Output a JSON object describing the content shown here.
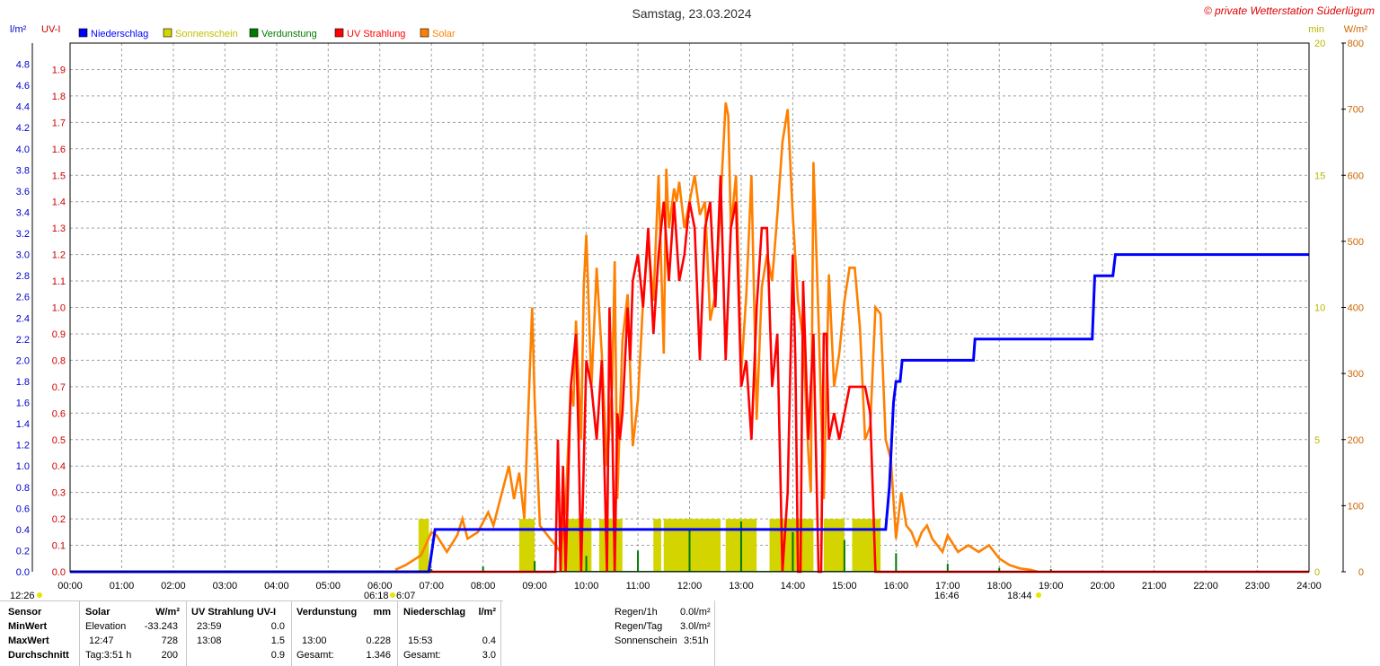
{
  "header": {
    "title": "Samstag, 23.03.2024",
    "copyright": "© private Wetterstation Süderlügum"
  },
  "axis_units": {
    "left_outer": "l/m²",
    "left_inner": "UV-I",
    "right_inner": "min",
    "right_outer": "W/m²"
  },
  "legend": [
    {
      "label": "Niederschlag",
      "color": "#0000ff"
    },
    {
      "label": "Sonnenschein",
      "color": "#d4d400"
    },
    {
      "label": "Verdunstung",
      "color": "#007a00"
    },
    {
      "label": "UV Strahlung",
      "color": "#ff0000"
    },
    {
      "label": "Solar",
      "color": "#ff8000"
    }
  ],
  "colors": {
    "rain": "#0000ff",
    "sun": "#d4d400",
    "evap": "#007a00",
    "uv": "#ff0000",
    "solar": "#ff8000",
    "grid": "#a0a0a0",
    "outer_left_text": "#0000cc",
    "inner_left_text": "#cc0000",
    "right_inner_text": "#b8b800",
    "right_outer_text": "#cc6600"
  },
  "events": {
    "moonrise": "12:26",
    "sunrise": "06:18",
    "sunrise_partial": "6:07",
    "sunset_partial": "16:46",
    "sunset": "18:44"
  },
  "chart_data": {
    "type": "line",
    "title": "Samstag, 23.03.2024",
    "x_unit": "hour",
    "xlim": [
      0,
      24
    ],
    "x_ticks": [
      "00:00",
      "01:00",
      "02:00",
      "03:00",
      "04:00",
      "05:00",
      "06:00",
      "07:00",
      "08:00",
      "09:00",
      "10:00",
      "11:00",
      "12:00",
      "13:00",
      "14:00",
      "15:00",
      "16:00",
      "17:00",
      "18:00",
      "19:00",
      "20:00",
      "21:00",
      "22:00",
      "23:00",
      "24:00"
    ],
    "axes": {
      "rain": {
        "label": "l/m²",
        "ylim": [
          0,
          5.0
        ],
        "ticks": [
          "0.0",
          "0.2",
          "0.4",
          "0.6",
          "0.8",
          "1.0",
          "1.2",
          "1.4",
          "1.6",
          "1.8",
          "2.0",
          "2.2",
          "2.4",
          "2.6",
          "2.8",
          "3.0",
          "3.2",
          "3.4",
          "3.6",
          "3.8",
          "4.0",
          "4.2",
          "4.4",
          "4.6",
          "4.8"
        ]
      },
      "uv": {
        "label": "UV-I",
        "ylim": [
          0,
          2.0
        ],
        "ticks": [
          "0.0",
          "0.1",
          "0.2",
          "0.3",
          "0.4",
          "0.5",
          "0.6",
          "0.7",
          "0.8",
          "0.9",
          "1.0",
          "1.1",
          "1.2",
          "1.3",
          "1.4",
          "1.5",
          "1.6",
          "1.7",
          "1.8",
          "1.9"
        ]
      },
      "sun_minutes": {
        "label": "min",
        "ylim": [
          0,
          20
        ],
        "ticks": [
          "0",
          "5",
          "10",
          "15",
          "20"
        ]
      },
      "solar": {
        "label": "W/m²",
        "ylim": [
          0,
          800
        ],
        "ticks": [
          "0",
          "100",
          "200",
          "300",
          "400",
          "500",
          "600",
          "700",
          "800"
        ]
      }
    },
    "series": [
      {
        "name": "Niederschlag",
        "axis": "rain",
        "x": [
          0,
          6.95,
          7.07,
          9.0,
          15.8,
          15.87,
          15.95,
          16.0,
          16.08,
          16.12,
          17.5,
          17.53,
          19.8,
          19.85,
          20.2,
          20.25,
          24.0
        ],
        "y": [
          0,
          0,
          0.4,
          0.4,
          0.4,
          0.8,
          1.6,
          1.8,
          1.8,
          2.0,
          2.0,
          2.2,
          2.2,
          2.8,
          2.8,
          3.0,
          3.0
        ]
      },
      {
        "name": "Solar",
        "axis": "solar",
        "x": [
          6.3,
          6.5,
          6.8,
          7.0,
          7.1,
          7.3,
          7.5,
          7.6,
          7.7,
          7.9,
          8.1,
          8.2,
          8.3,
          8.5,
          8.6,
          8.7,
          8.8,
          8.95,
          9.0,
          9.1,
          9.3,
          9.5,
          9.6,
          9.7,
          9.75,
          9.8,
          9.9,
          9.95,
          10.0,
          10.1,
          10.2,
          10.3,
          10.4,
          10.5,
          10.55,
          10.6,
          10.7,
          10.8,
          10.9,
          11.0,
          11.1,
          11.2,
          11.3,
          11.4,
          11.5,
          11.55,
          11.6,
          11.7,
          11.75,
          11.8,
          11.9,
          12.0,
          12.1,
          12.2,
          12.3,
          12.4,
          12.5,
          12.6,
          12.7,
          12.75,
          12.8,
          12.9,
          12.95,
          13.0,
          13.1,
          13.2,
          13.3,
          13.4,
          13.5,
          13.6,
          13.7,
          13.8,
          13.9,
          14.0,
          14.1,
          14.2,
          14.3,
          14.35,
          14.4,
          14.5,
          14.6,
          14.7,
          14.8,
          14.9,
          15.0,
          15.1,
          15.2,
          15.3,
          15.4,
          15.5,
          15.6,
          15.7,
          15.8,
          15.9,
          16.0,
          16.1,
          16.2,
          16.3,
          16.4,
          16.5,
          16.6,
          16.7,
          16.8,
          16.9,
          17.0,
          17.2,
          17.4,
          17.6,
          17.8,
          18.0,
          18.2,
          18.4,
          18.6,
          18.7,
          18.74
        ],
        "y": [
          3,
          10,
          25,
          60,
          55,
          30,
          55,
          80,
          50,
          60,
          90,
          70,
          100,
          160,
          110,
          150,
          80,
          400,
          260,
          70,
          50,
          30,
          100,
          280,
          250,
          380,
          200,
          430,
          510,
          280,
          460,
          330,
          160,
          280,
          470,
          110,
          350,
          420,
          190,
          260,
          410,
          500,
          410,
          600,
          330,
          610,
          520,
          580,
          560,
          590,
          520,
          560,
          600,
          540,
          560,
          380,
          420,
          560,
          710,
          690,
          520,
          600,
          460,
          300,
          420,
          600,
          230,
          430,
          480,
          440,
          540,
          650,
          700,
          540,
          410,
          350,
          180,
          120,
          620,
          380,
          110,
          450,
          280,
          330,
          410,
          460,
          460,
          370,
          200,
          220,
          400,
          390,
          200,
          170,
          50,
          120,
          70,
          60,
          40,
          60,
          70,
          50,
          40,
          30,
          55,
          30,
          40,
          30,
          40,
          20,
          10,
          5,
          3,
          1,
          0
        ]
      },
      {
        "name": "UV Strahlung",
        "axis": "uv",
        "x": [
          6.0,
          9.4,
          9.45,
          9.5,
          9.55,
          9.6,
          9.7,
          9.8,
          9.85,
          9.9,
          10.0,
          10.1,
          10.2,
          10.3,
          10.4,
          10.45,
          10.5,
          10.55,
          10.6,
          10.65,
          10.7,
          10.8,
          10.85,
          10.9,
          11.0,
          11.1,
          11.2,
          11.3,
          11.4,
          11.5,
          11.6,
          11.7,
          11.8,
          11.9,
          12.0,
          12.1,
          12.2,
          12.3,
          12.4,
          12.5,
          12.6,
          12.7,
          12.8,
          12.9,
          13.0,
          13.1,
          13.2,
          13.3,
          13.4,
          13.5,
          13.6,
          13.7,
          13.8,
          13.9,
          14.0,
          14.05,
          14.1,
          14.15,
          14.2,
          14.3,
          14.35,
          14.4,
          14.5,
          14.55,
          14.6,
          14.65,
          14.7,
          14.8,
          14.9,
          15.0,
          15.1,
          15.2,
          15.3,
          15.4,
          15.5,
          15.6,
          15.65,
          15.7,
          24.0
        ],
        "y": [
          0,
          0,
          0.5,
          0.0,
          0.4,
          0.0,
          0.7,
          0.9,
          0.5,
          0.0,
          0.8,
          0.7,
          0.5,
          0.8,
          0.0,
          1.0,
          0.6,
          0.0,
          0.6,
          0.5,
          0.6,
          1.0,
          0.8,
          1.1,
          1.2,
          1.0,
          1.3,
          0.9,
          1.2,
          1.4,
          1.1,
          1.4,
          1.1,
          1.2,
          1.4,
          1.3,
          0.8,
          1.3,
          1.4,
          1.0,
          1.5,
          0.8,
          1.3,
          1.4,
          0.7,
          0.8,
          0.5,
          1.0,
          1.3,
          1.3,
          0.7,
          0.9,
          0.0,
          0.3,
          1.2,
          0.8,
          0.0,
          0.0,
          1.1,
          0.5,
          0.7,
          0.9,
          0.0,
          0.0,
          0.9,
          0.9,
          0.5,
          0.6,
          0.5,
          0.6,
          0.7,
          0.7,
          0.7,
          0.7,
          0.6,
          0.0,
          0.0,
          0.0,
          0
        ]
      },
      {
        "name": "Sonnenschein",
        "axis": "sun_minutes",
        "type": "bar",
        "intervals": [
          [
            6.75,
            6.95
          ],
          [
            8.7,
            9.0
          ],
          [
            9.5,
            10.1
          ],
          [
            10.25,
            10.7
          ],
          [
            11.3,
            11.45
          ],
          [
            11.5,
            12.6
          ],
          [
            12.7,
            13.3
          ],
          [
            13.55,
            14.4
          ],
          [
            14.6,
            15.0
          ],
          [
            15.15,
            15.7
          ]
        ],
        "value": 2
      },
      {
        "name": "Verdunstung",
        "axis": "sun_minutes",
        "type": "spikes",
        "x": [
          6.0,
          7.0,
          8.0,
          9.0,
          10.0,
          11.0,
          12.0,
          13.0,
          14.0,
          15.0,
          16.0,
          17.0,
          18.0,
          19.0,
          20.0,
          21.0,
          22.0,
          23.0
        ],
        "y": [
          0.05,
          0.1,
          0.2,
          0.4,
          0.6,
          0.8,
          1.6,
          1.9,
          1.5,
          1.2,
          0.7,
          0.3,
          0.15,
          0.1,
          0.05,
          0.05,
          0.05,
          0.05
        ]
      }
    ]
  },
  "footer": {
    "headers": {
      "sensor": "Sensor",
      "solar": "Solar",
      "solar_unit": "W/m²",
      "uv": "UV Strahlung UV-I",
      "evap": "Verdunstung",
      "evap_unit": "mm",
      "rain": "Niederschlag",
      "rain_unit": "l/m²"
    },
    "rows": [
      {
        "label": "MinWert",
        "solar_a": "Elevation",
        "solar_b": "-33.243",
        "uv_a": "23:59",
        "uv_b": "0.0",
        "evap_a": "",
        "evap_b": "",
        "rain_a": "",
        "rain_b": ""
      },
      {
        "label": "MaxWert",
        "solar_a": "12:47",
        "solar_b": "728",
        "uv_a": "13:08",
        "uv_b": "1.5",
        "evap_a": "13:00",
        "evap_b": "0.228",
        "rain_a": "15:53",
        "rain_b": "0.4"
      },
      {
        "label": "Durchschnitt",
        "solar_a": "Tag:3:51 h",
        "solar_b": "200",
        "uv_a": "",
        "uv_b": "0.9",
        "evap_a": "Gesamt:",
        "evap_b": "1.346",
        "rain_a": "Gesamt:",
        "rain_b": "3.0"
      }
    ],
    "summary": [
      {
        "label": "Regen/1h",
        "value": "0.0l/m²"
      },
      {
        "label": "Regen/Tag",
        "value": "3.0l/m²"
      },
      {
        "label": "Sonnenschein",
        "value": "3:51h"
      }
    ]
  }
}
